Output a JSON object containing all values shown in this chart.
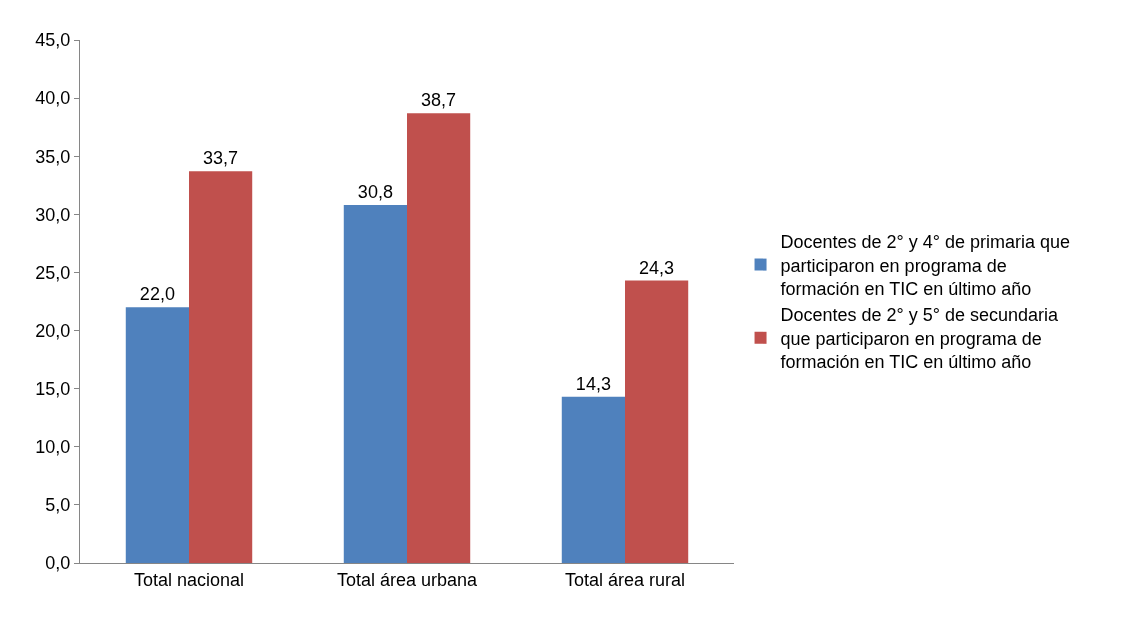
{
  "chart_data": {
    "type": "bar",
    "categories": [
      "Total nacional",
      "Total área urbana",
      "Total área rural"
    ],
    "series": [
      {
        "name": "Docentes de 2° y 4° de primaria que participaron en programa de formación en TIC en último año",
        "color": "#4f81bd",
        "values": [
          22.0,
          30.8,
          14.3
        ],
        "value_labels": [
          "22,0",
          "30,8",
          "14,3"
        ]
      },
      {
        "name": "Docentes de 2° y 5° de secundaria que participaron en programa de formación en TIC en último año",
        "color": "#c0504d",
        "values": [
          33.7,
          38.7,
          24.3
        ],
        "value_labels": [
          "33,7",
          "38,7",
          "24,3"
        ]
      }
    ],
    "ylim": [
      0,
      45
    ],
    "yticks": [
      {
        "value": 0,
        "label": "0,0"
      },
      {
        "value": 5,
        "label": "5,0"
      },
      {
        "value": 10,
        "label": "10,0"
      },
      {
        "value": 15,
        "label": "15,0"
      },
      {
        "value": 20,
        "label": "20,0"
      },
      {
        "value": 25,
        "label": "25,0"
      },
      {
        "value": 30,
        "label": "30,0"
      },
      {
        "value": 35,
        "label": "35,0"
      },
      {
        "value": 40,
        "label": "40,0"
      },
      {
        "value": 45,
        "label": "45,0"
      }
    ],
    "legend": "right"
  }
}
